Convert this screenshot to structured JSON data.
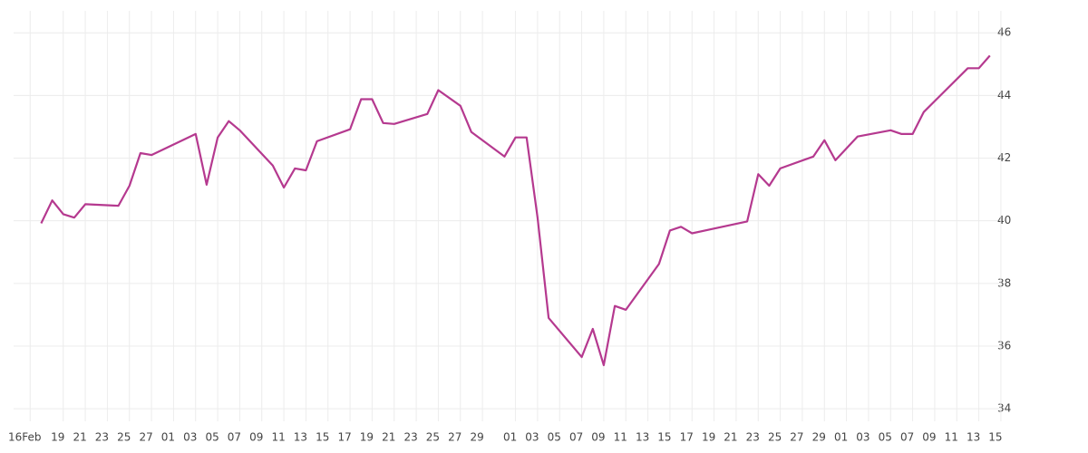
{
  "chart_data": {
    "type": "line",
    "color": "#b5398f",
    "grid": true,
    "x": [
      1,
      2,
      3,
      4,
      5,
      8,
      9,
      10,
      11,
      15,
      16,
      17,
      18,
      19,
      22,
      23,
      24,
      25,
      26,
      29,
      30,
      31,
      32,
      33,
      36,
      37,
      39,
      40,
      43,
      44,
      45,
      46,
      47,
      50,
      51,
      52,
      53,
      54,
      57,
      58,
      59,
      60,
      65,
      66,
      67,
      68,
      71,
      72,
      73,
      75,
      78,
      79,
      80,
      81,
      82,
      85,
      86,
      87
    ],
    "values": [
      39.92,
      40.65,
      40.21,
      40.1,
      40.53,
      40.48,
      41.12,
      42.16,
      42.1,
      42.77,
      41.15,
      42.66,
      43.18,
      42.89,
      41.76,
      41.06,
      41.67,
      41.61,
      42.54,
      42.92,
      43.88,
      43.88,
      43.12,
      43.09,
      43.41,
      44.17,
      43.67,
      42.83,
      42.05,
      42.66,
      42.66,
      40.1,
      36.9,
      35.65,
      36.55,
      35.39,
      37.28,
      37.16,
      38.62,
      39.69,
      39.81,
      39.6,
      39.98,
      41.49,
      41.12,
      41.67,
      42.05,
      42.57,
      41.93,
      42.69,
      42.89,
      42.77,
      42.77,
      43.47,
      43.82,
      44.87,
      44.87,
      45.27
    ],
    "xlim": [
      -1.5,
      88.5
    ],
    "xticks": [
      {
        "value": 0,
        "label": "16Feb"
      },
      {
        "value": 3,
        "label": "19"
      },
      {
        "value": 5,
        "label": "21"
      },
      {
        "value": 7,
        "label": "23"
      },
      {
        "value": 9,
        "label": "25"
      },
      {
        "value": 11,
        "label": "27"
      },
      {
        "value": 13,
        "label": "01"
      },
      {
        "value": 15,
        "label": "03"
      },
      {
        "value": 17,
        "label": "05"
      },
      {
        "value": 19,
        "label": "07"
      },
      {
        "value": 21,
        "label": "09"
      },
      {
        "value": 23,
        "label": "11"
      },
      {
        "value": 25,
        "label": "13"
      },
      {
        "value": 27,
        "label": "15"
      },
      {
        "value": 29,
        "label": "17"
      },
      {
        "value": 31,
        "label": "19"
      },
      {
        "value": 33,
        "label": "21"
      },
      {
        "value": 35,
        "label": "23"
      },
      {
        "value": 37,
        "label": "25"
      },
      {
        "value": 39,
        "label": "27"
      },
      {
        "value": 41,
        "label": "29"
      },
      {
        "value": 44,
        "label": "01"
      },
      {
        "value": 46,
        "label": "03"
      },
      {
        "value": 48,
        "label": "05"
      },
      {
        "value": 50,
        "label": "07"
      },
      {
        "value": 52,
        "label": "09"
      },
      {
        "value": 54,
        "label": "11"
      },
      {
        "value": 56,
        "label": "13"
      },
      {
        "value": 58,
        "label": "15"
      },
      {
        "value": 60,
        "label": "17"
      },
      {
        "value": 62,
        "label": "19"
      },
      {
        "value": 64,
        "label": "21"
      },
      {
        "value": 66,
        "label": "23"
      },
      {
        "value": 68,
        "label": "25"
      },
      {
        "value": 70,
        "label": "27"
      },
      {
        "value": 72,
        "label": "29"
      },
      {
        "value": 74,
        "label": "01"
      },
      {
        "value": 76,
        "label": "03"
      },
      {
        "value": 78,
        "label": "05"
      },
      {
        "value": 80,
        "label": "07"
      },
      {
        "value": 82,
        "label": "09"
      },
      {
        "value": 84,
        "label": "11"
      },
      {
        "value": 86,
        "label": "13"
      },
      {
        "value": 88,
        "label": "15"
      }
    ],
    "ylim": [
      33.6,
      46.7
    ],
    "yticks": [
      34,
      36,
      38,
      40,
      42,
      44,
      46
    ]
  }
}
